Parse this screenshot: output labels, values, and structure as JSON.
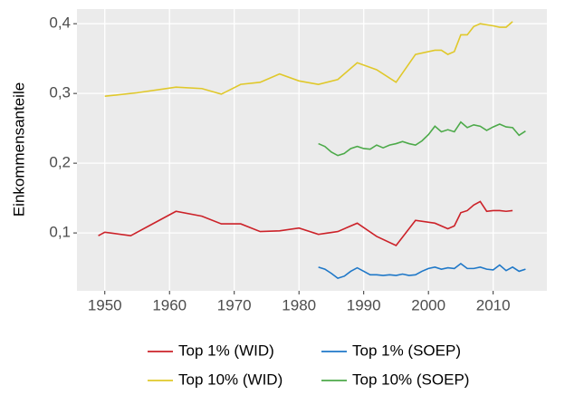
{
  "chart_data": {
    "type": "line",
    "y_label": "Einkommensanteile",
    "xlim": [
      1945.7,
      2018.3
    ],
    "xticks": [
      1950,
      1960,
      1970,
      1980,
      1990,
      2000,
      2010
    ],
    "ylim": [
      0.017,
      0.421
    ],
    "yticks": [
      {
        "value": 0.1,
        "label": "0,1"
      },
      {
        "value": 0.2,
        "label": "0,2"
      },
      {
        "value": 0.3,
        "label": "0,3"
      },
      {
        "value": 0.4,
        "label": "0,4"
      }
    ],
    "grid": true,
    "legend": "bottom",
    "series": [
      {
        "name": "Top 1% (WID)",
        "color": "#cc2229",
        "x": [
          1949,
          1950,
          1954,
          1957,
          1961,
          1965,
          1968,
          1971,
          1974,
          1977,
          1980,
          1983,
          1986,
          1989,
          1992,
          1995,
          1998,
          2001,
          2003,
          2004,
          2005,
          2006,
          2007,
          2008,
          2009,
          2010,
          2011,
          2012,
          2013
        ],
        "values": [
          0.096,
          0.101,
          0.096,
          0.111,
          0.131,
          0.124,
          0.113,
          0.113,
          0.102,
          0.103,
          0.107,
          0.098,
          0.102,
          0.114,
          0.095,
          0.082,
          0.118,
          0.114,
          0.106,
          0.11,
          0.129,
          0.132,
          0.14,
          0.145,
          0.131,
          0.132,
          0.132,
          0.131,
          0.132
        ]
      },
      {
        "name": "Top 1% (SOEP)",
        "color": "#1f78c8",
        "x": [
          1983,
          1984,
          1985,
          1986,
          1987,
          1988,
          1989,
          1990,
          1991,
          1992,
          1993,
          1994,
          1995,
          1996,
          1997,
          1998,
          1999,
          2000,
          2001,
          2002,
          2003,
          2004,
          2005,
          2006,
          2007,
          2008,
          2009,
          2010,
          2011,
          2012,
          2013,
          2014,
          2015
        ],
        "values": [
          0.051,
          0.048,
          0.042,
          0.035,
          0.038,
          0.045,
          0.05,
          0.045,
          0.04,
          0.04,
          0.039,
          0.04,
          0.039,
          0.041,
          0.039,
          0.04,
          0.045,
          0.049,
          0.051,
          0.048,
          0.05,
          0.049,
          0.056,
          0.049,
          0.049,
          0.051,
          0.048,
          0.047,
          0.054,
          0.046,
          0.051,
          0.045,
          0.048
        ]
      },
      {
        "name": "Top 10% (WID)",
        "color": "#e0c82a",
        "x": [
          1950,
          1955,
          1961,
          1965,
          1968,
          1971,
          1974,
          1977,
          1980,
          1983,
          1986,
          1989,
          1992,
          1995,
          1998,
          2001,
          2002,
          2003,
          2004,
          2005,
          2006,
          2007,
          2008,
          2010,
          2011,
          2012,
          2013
        ],
        "values": [
          0.296,
          0.301,
          0.309,
          0.307,
          0.299,
          0.313,
          0.316,
          0.328,
          0.318,
          0.313,
          0.32,
          0.344,
          0.334,
          0.316,
          0.356,
          0.362,
          0.362,
          0.356,
          0.36,
          0.384,
          0.384,
          0.396,
          0.4,
          0.397,
          0.395,
          0.395,
          0.403
        ]
      },
      {
        "name": "Top 10% (SOEP)",
        "color": "#4daa4a",
        "x": [
          1983,
          1984,
          1985,
          1986,
          1987,
          1988,
          1989,
          1990,
          1991,
          1992,
          1993,
          1994,
          1995,
          1996,
          1997,
          1998,
          1999,
          2000,
          2001,
          2002,
          2003,
          2004,
          2005,
          2006,
          2007,
          2008,
          2009,
          2010,
          2011,
          2012,
          2013,
          2014,
          2015
        ],
        "values": [
          0.228,
          0.224,
          0.216,
          0.211,
          0.214,
          0.221,
          0.224,
          0.221,
          0.22,
          0.226,
          0.222,
          0.226,
          0.228,
          0.231,
          0.228,
          0.226,
          0.232,
          0.241,
          0.253,
          0.245,
          0.248,
          0.245,
          0.259,
          0.251,
          0.255,
          0.253,
          0.247,
          0.252,
          0.256,
          0.252,
          0.251,
          0.24,
          0.246
        ]
      }
    ]
  }
}
